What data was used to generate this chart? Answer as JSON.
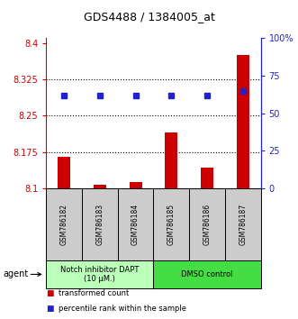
{
  "title": "GDS4488 / 1384005_at",
  "samples": [
    "GSM786182",
    "GSM786183",
    "GSM786184",
    "GSM786185",
    "GSM786186",
    "GSM786187"
  ],
  "bar_values": [
    8.165,
    8.107,
    8.112,
    8.215,
    8.143,
    8.375
  ],
  "bar_base": 8.1,
  "percentile_values": [
    62,
    62,
    62,
    62,
    62,
    65
  ],
  "ylim": [
    8.1,
    8.41
  ],
  "yticks": [
    8.1,
    8.175,
    8.25,
    8.325,
    8.4
  ],
  "ytick_labels": [
    "8.1",
    "8.175",
    "8.25",
    "8.325",
    "8.4"
  ],
  "right_yticks": [
    0,
    25,
    50,
    75,
    100
  ],
  "right_ytick_labels": [
    "0",
    "25",
    "50",
    "75",
    "100%"
  ],
  "bar_color": "#cc0000",
  "dot_color": "#2222cc",
  "agent_groups": [
    {
      "label": "Notch inhibitor DAPT\n(10 μM.)",
      "samples_idx": [
        0,
        1,
        2
      ],
      "color": "#bbffbb"
    },
    {
      "label": "DMSO control",
      "samples_idx": [
        3,
        4,
        5
      ],
      "color": "#44dd44"
    }
  ],
  "agent_label": "agent",
  "legend_items": [
    {
      "color": "#cc0000",
      "label": "transformed count"
    },
    {
      "color": "#2222cc",
      "label": "percentile rank within the sample"
    }
  ],
  "sample_box_color": "#cccccc",
  "axis_left_color": "#cc0000",
  "axis_right_color": "#2222cc",
  "grid_linestyle": ":",
  "grid_color": "black",
  "grid_linewidth": 0.8
}
